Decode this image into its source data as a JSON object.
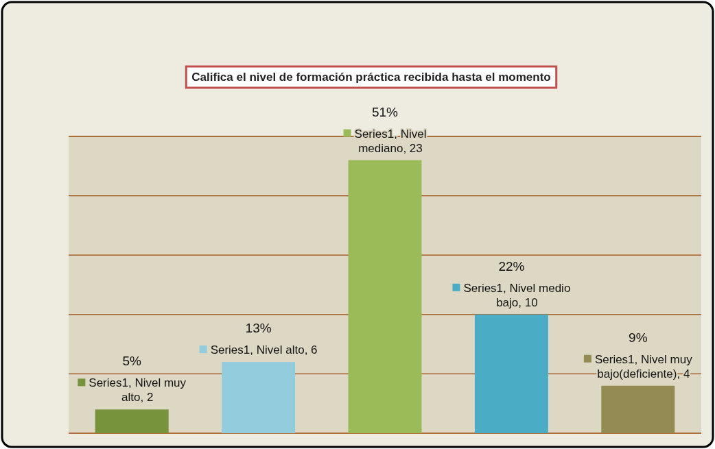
{
  "chart_data": {
    "type": "bar",
    "title": "Califica el nivel de formación práctica recibida hasta el momento",
    "categories": [
      null,
      null,
      null,
      null,
      null
    ],
    "series": [
      {
        "values": [
          2,
          6,
          23,
          10,
          4
        ],
        "colors": [
          "#77933c",
          "#93cddd",
          "#9bbb59",
          "#4bacc6",
          "#948a54"
        ],
        "value_labels": [
          "Series1, Nivel muy alto, 2",
          "Series1, Nivel alto, 6",
          "Series1, Nivel mediano, 23",
          "Series1, Nivel medio bajo, 10",
          "Series1, Nivel muy bajo(deficiente), 4"
        ]
      }
    ],
    "ylim": [
      0,
      25
    ],
    "yticks": [
      {
        "value": 0,
        "label": null
      },
      {
        "value": 5,
        "label": null
      },
      {
        "value": 10,
        "label": null
      },
      {
        "value": 15,
        "label": null
      },
      {
        "value": 20,
        "label": null
      },
      {
        "value": 25,
        "label": null
      }
    ],
    "grid": "y",
    "tick_labels": false,
    "annotations": [
      "5%",
      "13%",
      "51%",
      "22%",
      "9%"
    ]
  }
}
